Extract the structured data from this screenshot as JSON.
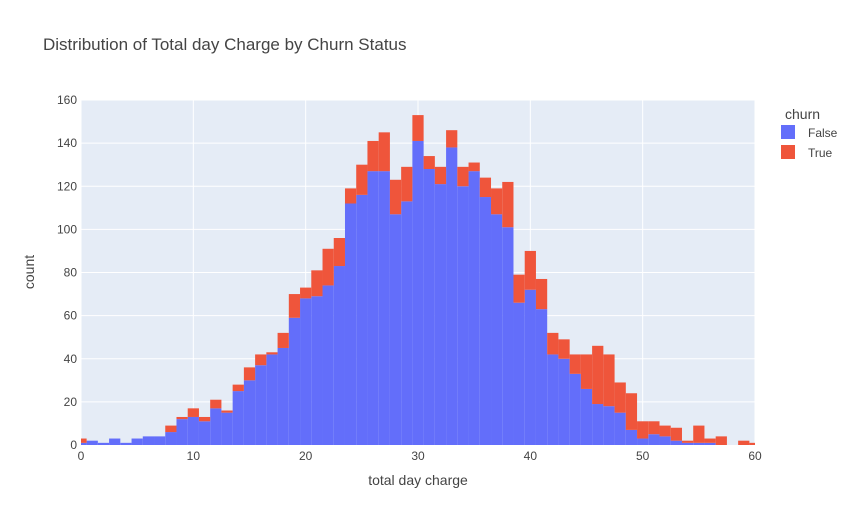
{
  "chart_data": {
    "type": "bar",
    "title": "Distribution of Total day Charge by Churn Status",
    "xlabel": "total day charge",
    "ylabel": "count",
    "xlim": [
      0,
      60
    ],
    "ylim": [
      0,
      160
    ],
    "x_ticks": [
      0,
      10,
      20,
      30,
      40,
      50,
      60
    ],
    "y_ticks": [
      0,
      20,
      40,
      60,
      80,
      100,
      120,
      140,
      160
    ],
    "bin_width": 1,
    "barmode": "stack",
    "grid": true,
    "legend_title": "churn",
    "legend_position": "top-right",
    "x": [
      0,
      1,
      2,
      3,
      4,
      5,
      6,
      7,
      8,
      9,
      10,
      11,
      12,
      13,
      14,
      15,
      16,
      17,
      18,
      19,
      20,
      21,
      22,
      23,
      24,
      25,
      26,
      27,
      28,
      29,
      30,
      31,
      32,
      33,
      34,
      35,
      36,
      37,
      38,
      39,
      40,
      41,
      42,
      43,
      44,
      45,
      46,
      47,
      48,
      49,
      50,
      51,
      52,
      53,
      54,
      55,
      56,
      57,
      58,
      59,
      60
    ],
    "series": [
      {
        "name": "False",
        "color": "#636efa",
        "values": [
          1,
          2,
          1,
          3,
          1,
          3,
          4,
          4,
          6,
          12,
          13,
          11,
          17,
          15,
          25,
          30,
          37,
          42,
          45,
          59,
          68,
          69,
          74,
          83,
          112,
          116,
          127,
          127,
          107,
          113,
          141,
          128,
          121,
          138,
          120,
          127,
          115,
          107,
          101,
          66,
          72,
          63,
          42,
          40,
          33,
          26,
          19,
          18,
          15,
          7,
          3,
          5,
          4,
          2,
          1,
          1,
          1,
          0,
          0,
          0,
          0
        ]
      },
      {
        "name": "True",
        "color": "#ef553b",
        "values": [
          2,
          0,
          0,
          0,
          0,
          0,
          0,
          0,
          3,
          1,
          4,
          2,
          4,
          1,
          3,
          6,
          5,
          1,
          7,
          11,
          5,
          12,
          17,
          13,
          7,
          14,
          14,
          18,
          16,
          16,
          12,
          6,
          8,
          8,
          9,
          4,
          9,
          12,
          21,
          13,
          18,
          14,
          10,
          9,
          9,
          16,
          27,
          24,
          14,
          17,
          8,
          6,
          5,
          6,
          1,
          8,
          2,
          4,
          0,
          2,
          1
        ]
      }
    ]
  }
}
